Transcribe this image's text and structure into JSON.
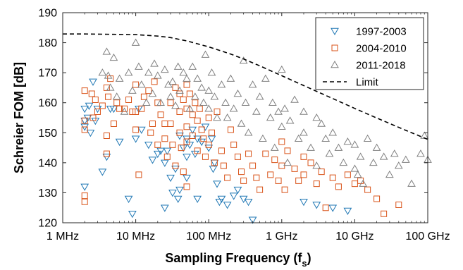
{
  "chart_data": {
    "type": "scatter",
    "xlabel": "Sampling Frequency (f",
    "xlabel_sub": "s",
    "xlabel_end": ")",
    "ylabel": "Schreier FOM [dB]",
    "xscale": "log",
    "xlim": [
      1000000,
      100000000000
    ],
    "ylim": [
      120,
      190
    ],
    "grid": false,
    "legend_position": "top-right",
    "x_ticks": [
      {
        "value": 1000000,
        "label": "1 MHz"
      },
      {
        "value": 10000000,
        "label": "10 MHz"
      },
      {
        "value": 100000000,
        "label": "100 MHz"
      },
      {
        "value": 1000000000,
        "label": "1 GHz"
      },
      {
        "value": 10000000000,
        "label": "10 GHz"
      },
      {
        "value": 100000000000,
        "label": "100 GHz"
      }
    ],
    "y_ticks": [
      120,
      130,
      140,
      150,
      160,
      170,
      180,
      190
    ],
    "series": [
      {
        "name": "1997-2003",
        "marker": "triangle-down",
        "color": "#1f77b4",
        "points": [
          [
            2000000,
            158
          ],
          [
            2000000,
            154
          ],
          [
            2000000,
            152
          ],
          [
            2000000,
            132
          ],
          [
            2200000,
            155
          ],
          [
            2300000,
            159
          ],
          [
            2400000,
            150
          ],
          [
            2600000,
            167
          ],
          [
            2800000,
            154
          ],
          [
            3000000,
            158
          ],
          [
            3500000,
            137
          ],
          [
            4000000,
            142
          ],
          [
            4500000,
            158
          ],
          [
            5000000,
            158
          ],
          [
            6000000,
            147
          ],
          [
            8000000,
            128
          ],
          [
            9000000,
            123
          ],
          [
            10000000,
            148
          ],
          [
            11000000,
            158
          ],
          [
            12000000,
            151
          ],
          [
            15000000,
            146
          ],
          [
            17000000,
            141
          ],
          [
            20000000,
            143
          ],
          [
            22000000,
            144
          ],
          [
            25000000,
            140
          ],
          [
            25000000,
            125
          ],
          [
            27000000,
            144
          ],
          [
            30000000,
            135
          ],
          [
            32000000,
            130
          ],
          [
            35000000,
            138
          ],
          [
            38000000,
            128
          ],
          [
            40000000,
            149
          ],
          [
            40000000,
            131
          ],
          [
            45000000,
            145
          ],
          [
            50000000,
            148
          ],
          [
            50000000,
            142
          ],
          [
            50000000,
            135
          ],
          [
            55000000,
            146
          ],
          [
            60000000,
            151
          ],
          [
            65000000,
            143
          ],
          [
            70000000,
            148
          ],
          [
            70000000,
            128
          ],
          [
            80000000,
            147
          ],
          [
            90000000,
            152
          ],
          [
            100000000,
            145
          ],
          [
            110000000,
            148
          ],
          [
            115000000,
            138
          ],
          [
            120000000,
            140
          ],
          [
            130000000,
            133
          ],
          [
            140000000,
            127
          ],
          [
            150000000,
            128
          ],
          [
            180000000,
            126
          ],
          [
            220000000,
            129
          ],
          [
            250000000,
            131
          ],
          [
            300000000,
            128
          ],
          [
            350000000,
            127
          ],
          [
            400000000,
            121
          ],
          [
            2000000000,
            127
          ],
          [
            3000000000,
            126
          ],
          [
            5000000000,
            125
          ],
          [
            8000000000,
            124
          ]
        ]
      },
      {
        "name": "2004-2010",
        "marker": "square",
        "color": "#d95319",
        "points": [
          [
            2000000,
            164
          ],
          [
            2000000,
            154
          ],
          [
            2000000,
            151
          ],
          [
            2000000,
            129
          ],
          [
            2000000,
            127
          ],
          [
            2500000,
            163
          ],
          [
            2600000,
            155
          ],
          [
            2800000,
            161
          ],
          [
            3000000,
            157
          ],
          [
            3500000,
            159
          ],
          [
            4000000,
            165
          ],
          [
            4000000,
            149
          ],
          [
            4000000,
            143
          ],
          [
            4200000,
            162
          ],
          [
            4500000,
            168
          ],
          [
            5000000,
            153
          ],
          [
            5500000,
            160
          ],
          [
            6000000,
            158
          ],
          [
            7000000,
            158
          ],
          [
            8000000,
            161
          ],
          [
            9000000,
            157
          ],
          [
            10000000,
            166
          ],
          [
            10000000,
            157
          ],
          [
            10000000,
            151
          ],
          [
            11000000,
            136
          ],
          [
            12000000,
            158
          ],
          [
            13000000,
            162
          ],
          [
            15000000,
            164
          ],
          [
            16000000,
            150
          ],
          [
            17000000,
            153
          ],
          [
            18000000,
            167
          ],
          [
            20000000,
            160
          ],
          [
            20000000,
            146
          ],
          [
            22000000,
            156
          ],
          [
            25000000,
            153
          ],
          [
            25000000,
            148
          ],
          [
            27000000,
            142
          ],
          [
            30000000,
            160
          ],
          [
            30000000,
            153
          ],
          [
            32000000,
            146
          ],
          [
            35000000,
            165
          ],
          [
            35000000,
            139
          ],
          [
            40000000,
            163
          ],
          [
            40000000,
            157
          ],
          [
            40000000,
            150
          ],
          [
            42000000,
            145
          ],
          [
            45000000,
            161
          ],
          [
            45000000,
            137
          ],
          [
            50000000,
            166
          ],
          [
            50000000,
            158
          ],
          [
            50000000,
            152
          ],
          [
            50000000,
            147
          ],
          [
            50000000,
            132
          ],
          [
            55000000,
            163
          ],
          [
            60000000,
            156
          ],
          [
            60000000,
            149
          ],
          [
            65000000,
            160
          ],
          [
            70000000,
            154
          ],
          [
            70000000,
            144
          ],
          [
            75000000,
            158
          ],
          [
            80000000,
            151
          ],
          [
            85000000,
            148
          ],
          [
            90000000,
            142
          ],
          [
            100000000,
            155
          ],
          [
            100000000,
            146
          ],
          [
            110000000,
            150
          ],
          [
            120000000,
            140
          ],
          [
            130000000,
            157
          ],
          [
            150000000,
            144
          ],
          [
            160000000,
            139
          ],
          [
            180000000,
            135
          ],
          [
            200000000,
            151
          ],
          [
            220000000,
            146
          ],
          [
            250000000,
            142
          ],
          [
            280000000,
            137
          ],
          [
            300000000,
            134
          ],
          [
            350000000,
            143
          ],
          [
            400000000,
            139
          ],
          [
            450000000,
            135
          ],
          [
            500000000,
            131
          ],
          [
            600000000,
            143
          ],
          [
            700000000,
            136
          ],
          [
            800000000,
            141
          ],
          [
            900000000,
            134
          ],
          [
            1000000000,
            147
          ],
          [
            1000000000,
            139
          ],
          [
            1100000000,
            131
          ],
          [
            1200000000,
            144
          ],
          [
            1500000000,
            138
          ],
          [
            1700000000,
            134
          ],
          [
            2000000000,
            142
          ],
          [
            2000000000,
            136
          ],
          [
            2500000000,
            140
          ],
          [
            3000000000,
            133
          ],
          [
            3500000000,
            137
          ],
          [
            4000000000,
            125
          ],
          [
            5000000000,
            135
          ],
          [
            6000000000,
            132
          ],
          [
            8000000000,
            136
          ],
          [
            10000000000,
            133
          ],
          [
            12000000000,
            134
          ],
          [
            15000000000,
            131
          ],
          [
            20000000000,
            128
          ],
          [
            25000000000,
            123
          ],
          [
            40000000000,
            126
          ]
        ]
      },
      {
        "name": "2011-2018",
        "marker": "triangle-up",
        "color": "#808080",
        "points": [
          [
            3500000,
            170
          ],
          [
            4000000,
            177
          ],
          [
            4200000,
            169
          ],
          [
            4500000,
            165
          ],
          [
            5000000,
            175
          ],
          [
            5500000,
            162
          ],
          [
            6000000,
            168
          ],
          [
            7000000,
            157
          ],
          [
            8000000,
            170
          ],
          [
            9000000,
            164
          ],
          [
            10000000,
            180
          ],
          [
            11000000,
            172
          ],
          [
            12000000,
            166
          ],
          [
            14000000,
            160
          ],
          [
            15000000,
            170
          ],
          [
            17000000,
            163
          ],
          [
            18000000,
            173
          ],
          [
            20000000,
            169
          ],
          [
            22000000,
            160
          ],
          [
            25000000,
            171
          ],
          [
            28000000,
            166
          ],
          [
            30000000,
            162
          ],
          [
            32000000,
            167
          ],
          [
            35000000,
            159
          ],
          [
            38000000,
            172
          ],
          [
            40000000,
            164
          ],
          [
            45000000,
            170
          ],
          [
            50000000,
            168
          ],
          [
            55000000,
            158
          ],
          [
            60000000,
            172
          ],
          [
            65000000,
            162
          ],
          [
            70000000,
            168
          ],
          [
            80000000,
            165
          ],
          [
            85000000,
            160
          ],
          [
            90000000,
            176
          ],
          [
            100000000,
            164
          ],
          [
            100000000,
            158
          ],
          [
            110000000,
            170
          ],
          [
            120000000,
            162
          ],
          [
            130000000,
            155
          ],
          [
            150000000,
            166
          ],
          [
            170000000,
            160
          ],
          [
            180000000,
            155
          ],
          [
            200000000,
            168
          ],
          [
            220000000,
            158
          ],
          [
            250000000,
            163
          ],
          [
            280000000,
            153
          ],
          [
            300000000,
            174
          ],
          [
            320000000,
            160
          ],
          [
            350000000,
            150
          ],
          [
            400000000,
            166
          ],
          [
            450000000,
            157
          ],
          [
            500000000,
            162
          ],
          [
            550000000,
            148
          ],
          [
            600000000,
            168
          ],
          [
            700000000,
            155
          ],
          [
            750000000,
            160
          ],
          [
            800000000,
            145
          ],
          [
            900000000,
            157
          ],
          [
            1000000000,
            171
          ],
          [
            1000000000,
            152
          ],
          [
            1100000000,
            158
          ],
          [
            1200000000,
            140
          ],
          [
            1300000000,
            154
          ],
          [
            1500000000,
            161
          ],
          [
            1700000000,
            148
          ],
          [
            2000000000,
            157
          ],
          [
            2000000000,
            150
          ],
          [
            2500000000,
            145
          ],
          [
            3000000000,
            155
          ],
          [
            3000000000,
            139
          ],
          [
            3500000000,
            153
          ],
          [
            4000000000,
            148
          ],
          [
            4500000000,
            143
          ],
          [
            5000000000,
            150
          ],
          [
            6000000000,
            145
          ],
          [
            7000000000,
            140
          ],
          [
            8000000000,
            147
          ],
          [
            10000000000,
            146
          ],
          [
            10000000000,
            138
          ],
          [
            11000000000,
            136
          ],
          [
            12000000000,
            142
          ],
          [
            13000000000,
            133
          ],
          [
            15000000000,
            148
          ],
          [
            18000000000,
            140
          ],
          [
            20000000000,
            145
          ],
          [
            25000000000,
            142
          ],
          [
            30000000000,
            136
          ],
          [
            35000000000,
            143
          ],
          [
            40000000000,
            139
          ],
          [
            50000000000,
            141
          ],
          [
            60000000000,
            133
          ],
          [
            80000000000,
            143
          ],
          [
            90000000000,
            149
          ],
          [
            100000000000,
            141
          ]
        ]
      }
    ],
    "limit_line": {
      "name": "Limit",
      "style": "dashed",
      "color": "#000000",
      "points": [
        [
          1000000,
          182.9
        ],
        [
          2000000,
          182.9
        ],
        [
          5000000,
          182.8
        ],
        [
          10000000,
          182.7
        ],
        [
          20000000,
          182.2
        ],
        [
          30000000,
          181.7
        ],
        [
          50000000,
          180.6
        ],
        [
          100000000,
          178.6
        ],
        [
          200000000,
          176.2
        ],
        [
          300000000,
          174.6
        ],
        [
          500000000,
          172.3
        ],
        [
          1000000000,
          169.0
        ],
        [
          2000000000,
          165.7
        ],
        [
          5000000000,
          161.4
        ],
        [
          10000000000,
          158.1
        ],
        [
          20000000000,
          154.9
        ],
        [
          50000000000,
          150.8
        ],
        [
          100000000000,
          147.8
        ]
      ]
    }
  }
}
